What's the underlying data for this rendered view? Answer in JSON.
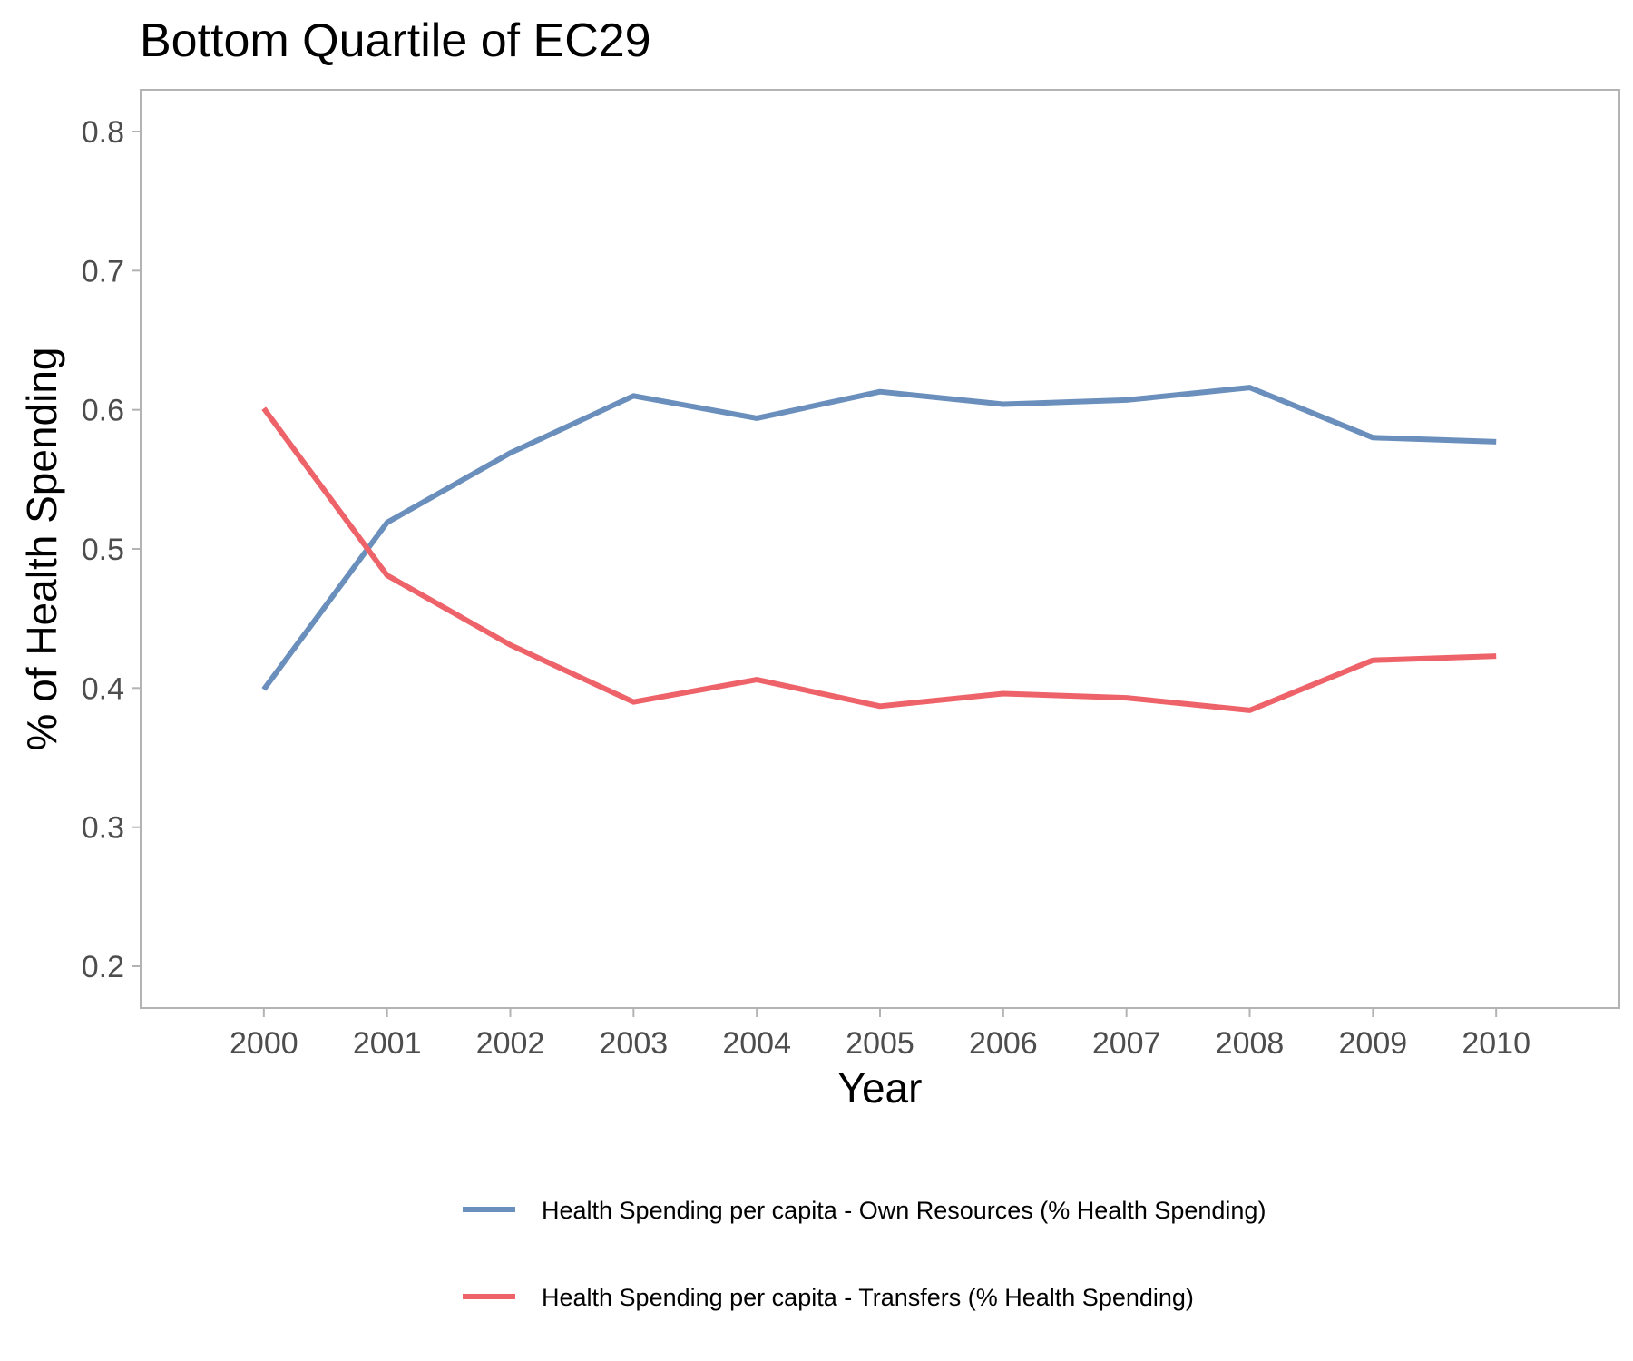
{
  "chart_data": {
    "type": "line",
    "title": "Bottom Quartile of EC29",
    "xlabel": "Year",
    "ylabel": "% of Health Spending",
    "x": [
      2000,
      2001,
      2002,
      2003,
      2004,
      2005,
      2006,
      2007,
      2008,
      2009,
      2010
    ],
    "x_tick_labels": [
      "2000",
      "2001",
      "2002",
      "2003",
      "2004",
      "2005",
      "2006",
      "2007",
      "2008",
      "2009",
      "2010"
    ],
    "xlim": [
      1999,
      2011
    ],
    "y_ticks": [
      0.2,
      0.3,
      0.4,
      0.5,
      0.6,
      0.7,
      0.8
    ],
    "y_tick_labels": [
      "0.2",
      "0.3",
      "0.4",
      "0.5",
      "0.6",
      "0.7",
      "0.8"
    ],
    "ylim": [
      0.17,
      0.83
    ],
    "grid": false,
    "legend_position": "bottom",
    "series": [
      {
        "name": "Health Spending per capita - Own Resources (% Health Spending)",
        "color": "#6a8fbc",
        "values": [
          0.399,
          0.519,
          0.569,
          0.61,
          0.594,
          0.613,
          0.604,
          0.607,
          0.616,
          0.58,
          0.577
        ]
      },
      {
        "name": "Health Spending per capita - Transfers (% Health Spending)",
        "color": "#ee6369",
        "values": [
          0.601,
          0.481,
          0.431,
          0.39,
          0.406,
          0.387,
          0.396,
          0.393,
          0.384,
          0.42,
          0.423
        ]
      }
    ]
  }
}
